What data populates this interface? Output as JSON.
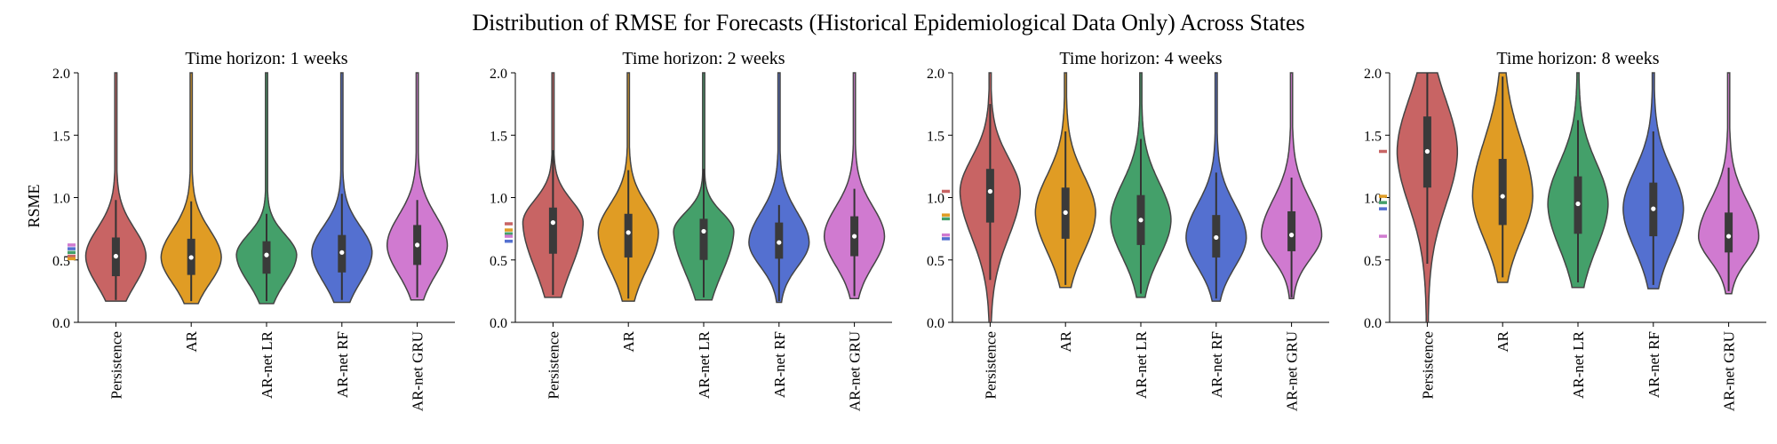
{
  "figure": {
    "title": "Distribution of RMSE for Forecasts (Historical Epidemiological Data Only) Across States",
    "ylabel": "RSME"
  },
  "colors": {
    "Persistence": "#c86464",
    "AR": "#e09c24",
    "AR-net LR": "#44a06a",
    "AR-net RF": "#5470d0",
    "AR-net GRU": "#d07ad0",
    "outline": "#444444"
  },
  "chart_data": [
    {
      "type": "violin",
      "title": "Time horizon: 1 weeks",
      "categories": [
        "Persistence",
        "AR",
        "AR-net LR",
        "AR-net RF",
        "AR-net GRU"
      ],
      "ylim": [
        0.0,
        2.0
      ],
      "yticks": [
        "0.0",
        "0.5",
        "1.0",
        "1.5",
        "2.0"
      ],
      "ylabel": "RSME",
      "series": [
        {
          "category": "Persistence",
          "median": 0.53,
          "q1": 0.37,
          "q3": 0.68,
          "whisker_low": 0.18,
          "whisker_high": 0.98,
          "min": 0.17,
          "max": 2.0,
          "mean": 0.53
        },
        {
          "category": "AR",
          "median": 0.52,
          "q1": 0.38,
          "q3": 0.67,
          "whisker_low": 0.17,
          "whisker_high": 0.97,
          "min": 0.15,
          "max": 2.0,
          "mean": 0.51
        },
        {
          "category": "AR-net LR",
          "median": 0.54,
          "q1": 0.39,
          "q3": 0.65,
          "whisker_low": 0.17,
          "whisker_high": 0.87,
          "min": 0.15,
          "max": 2.0,
          "mean": 0.56
        },
        {
          "category": "AR-net RF",
          "median": 0.56,
          "q1": 0.4,
          "q3": 0.7,
          "whisker_low": 0.18,
          "whisker_high": 1.03,
          "min": 0.16,
          "max": 2.0,
          "mean": 0.59
        },
        {
          "category": "AR-net GRU",
          "median": 0.62,
          "q1": 0.46,
          "q3": 0.78,
          "whisker_low": 0.2,
          "whisker_high": 0.98,
          "min": 0.18,
          "max": 2.0,
          "mean": 0.62
        }
      ]
    },
    {
      "type": "violin",
      "title": "Time horizon: 2 weeks",
      "categories": [
        "Persistence",
        "AR",
        "AR-net LR",
        "AR-net RF",
        "AR-net GRU"
      ],
      "ylim": [
        0.0,
        2.0
      ],
      "yticks": [
        "0.0",
        "0.5",
        "1.0",
        "1.5",
        "2.0"
      ],
      "series": [
        {
          "category": "Persistence",
          "median": 0.8,
          "q1": 0.55,
          "q3": 0.92,
          "whisker_low": 0.22,
          "whisker_high": 1.38,
          "min": 0.2,
          "max": 2.0,
          "mean": 0.79
        },
        {
          "category": "AR",
          "median": 0.72,
          "q1": 0.52,
          "q3": 0.87,
          "whisker_low": 0.19,
          "whisker_high": 1.22,
          "min": 0.17,
          "max": 2.0,
          "mean": 0.74
        },
        {
          "category": "AR-net LR",
          "median": 0.73,
          "q1": 0.5,
          "q3": 0.83,
          "whisker_low": 0.2,
          "whisker_high": 1.23,
          "min": 0.18,
          "max": 2.0,
          "mean": 0.71
        },
        {
          "category": "AR-net RF",
          "median": 0.64,
          "q1": 0.51,
          "q3": 0.8,
          "whisker_low": 0.17,
          "whisker_high": 0.94,
          "min": 0.16,
          "max": 2.0,
          "mean": 0.65
        },
        {
          "category": "AR-net GRU",
          "median": 0.69,
          "q1": 0.53,
          "q3": 0.85,
          "whisker_low": 0.21,
          "whisker_high": 1.07,
          "min": 0.19,
          "max": 2.0,
          "mean": 0.69
        }
      ]
    },
    {
      "type": "violin",
      "title": "Time horizon: 4 weeks",
      "categories": [
        "Persistence",
        "AR",
        "AR-net LR",
        "AR-net RF",
        "AR-net GRU"
      ],
      "ylim": [
        0.0,
        2.0
      ],
      "yticks": [
        "0.0",
        "0.5",
        "1.0",
        "1.5",
        "2.0"
      ],
      "series": [
        {
          "category": "Persistence",
          "median": 1.05,
          "q1": 0.8,
          "q3": 1.23,
          "whisker_low": 0.34,
          "whisker_high": 1.75,
          "min": 0.0,
          "max": 2.0,
          "mean": 1.05
        },
        {
          "category": "AR",
          "median": 0.88,
          "q1": 0.67,
          "q3": 1.08,
          "whisker_low": 0.3,
          "whisker_high": 1.53,
          "min": 0.28,
          "max": 2.0,
          "mean": 0.86
        },
        {
          "category": "AR-net LR",
          "median": 0.82,
          "q1": 0.62,
          "q3": 1.02,
          "whisker_low": 0.23,
          "whisker_high": 1.47,
          "min": 0.2,
          "max": 2.0,
          "mean": 0.83
        },
        {
          "category": "AR-net RF",
          "median": 0.68,
          "q1": 0.52,
          "q3": 0.86,
          "whisker_low": 0.19,
          "whisker_high": 1.2,
          "min": 0.17,
          "max": 2.0,
          "mean": 0.67
        },
        {
          "category": "AR-net GRU",
          "median": 0.7,
          "q1": 0.57,
          "q3": 0.89,
          "whisker_low": 0.2,
          "whisker_high": 1.16,
          "min": 0.19,
          "max": 2.0,
          "mean": 0.7
        }
      ]
    },
    {
      "type": "violin",
      "title": "Time horizon: 8 weeks",
      "categories": [
        "Persistence",
        "AR",
        "AR-net LR",
        "AR-net RF",
        "AR-net GRU"
      ],
      "ylim": [
        0.0,
        2.0
      ],
      "yticks": [
        "0.0",
        "0.5",
        "1.0",
        "1.5",
        "2.0"
      ],
      "series": [
        {
          "category": "Persistence",
          "median": 1.37,
          "q1": 1.08,
          "q3": 1.65,
          "whisker_low": 0.47,
          "whisker_high": 2.0,
          "min": 0.0,
          "max": 2.0,
          "mean": 1.37
        },
        {
          "category": "AR",
          "median": 1.01,
          "q1": 0.78,
          "q3": 1.31,
          "whisker_low": 0.36,
          "whisker_high": 1.97,
          "min": 0.32,
          "max": 2.0,
          "mean": 1.01
        },
        {
          "category": "AR-net LR",
          "median": 0.95,
          "q1": 0.71,
          "q3": 1.17,
          "whisker_low": 0.32,
          "whisker_high": 1.62,
          "min": 0.28,
          "max": 2.0,
          "mean": 0.96
        },
        {
          "category": "AR-net RF",
          "median": 0.91,
          "q1": 0.69,
          "q3": 1.12,
          "whisker_low": 0.3,
          "whisker_high": 1.53,
          "min": 0.27,
          "max": 2.0,
          "mean": 0.91
        },
        {
          "category": "AR-net GRU",
          "median": 0.69,
          "q1": 0.56,
          "q3": 0.88,
          "whisker_low": 0.25,
          "whisker_high": 1.24,
          "min": 0.23,
          "max": 2.0,
          "mean": 0.69
        }
      ]
    }
  ]
}
